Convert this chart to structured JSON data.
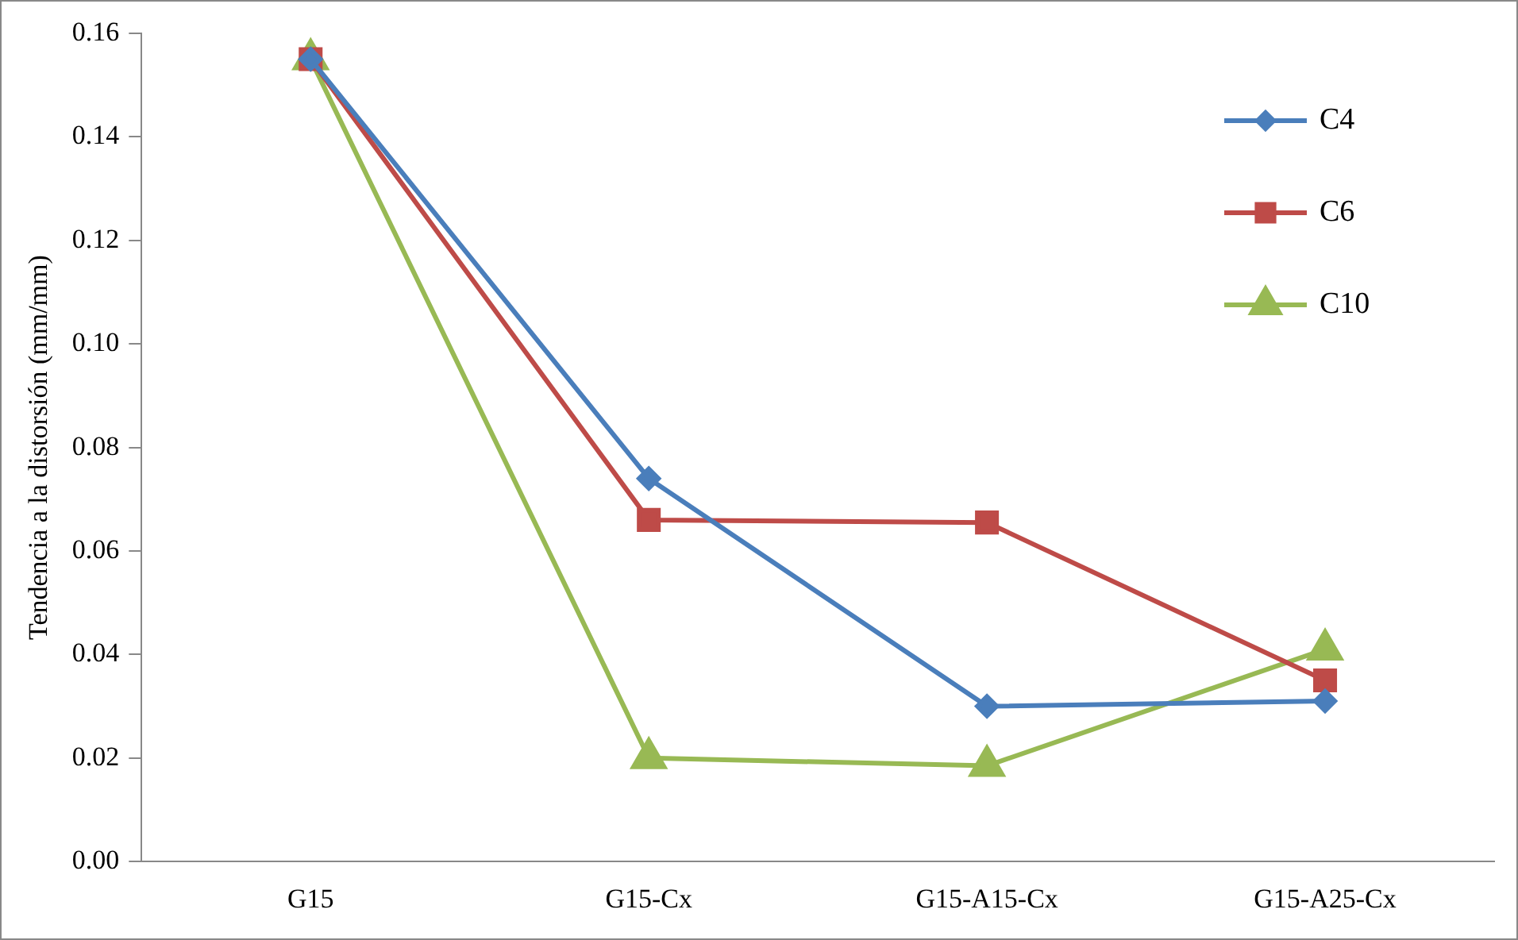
{
  "chart_data": {
    "type": "line",
    "ylabel": "Tendencia a la distorsión (mm/mm)",
    "categories": [
      "G15",
      "G15-Cx",
      "G15-A15-Cx",
      "G15-A25-Cx"
    ],
    "series": [
      {
        "name": "C4",
        "color": "#4a7ebb",
        "marker": "diamond",
        "values": [
          0.155,
          0.074,
          0.03,
          0.031
        ]
      },
      {
        "name": "C6",
        "color": "#be4b48",
        "marker": "square",
        "values": [
          0.155,
          0.066,
          0.0655,
          0.035
        ]
      },
      {
        "name": "C10",
        "color": "#98b954",
        "marker": "triangle",
        "values": [
          0.155,
          0.02,
          0.0185,
          0.041
        ]
      }
    ],
    "ylim": [
      0,
      0.16
    ],
    "yticks": [
      {
        "value": 0,
        "label": "0.00"
      },
      {
        "value": 0.02,
        "label": "0.02"
      },
      {
        "value": 0.04,
        "label": "0.04"
      },
      {
        "value": 0.06,
        "label": "0.06"
      },
      {
        "value": 0.08,
        "label": "0.08"
      },
      {
        "value": 0.1,
        "label": "0.10"
      },
      {
        "value": 0.12,
        "label": "0.12"
      },
      {
        "value": 0.14,
        "label": "0.14"
      },
      {
        "value": 0.16,
        "label": "0.16"
      }
    ],
    "grid": false,
    "legend": "top right",
    "line_style": "solid"
  }
}
